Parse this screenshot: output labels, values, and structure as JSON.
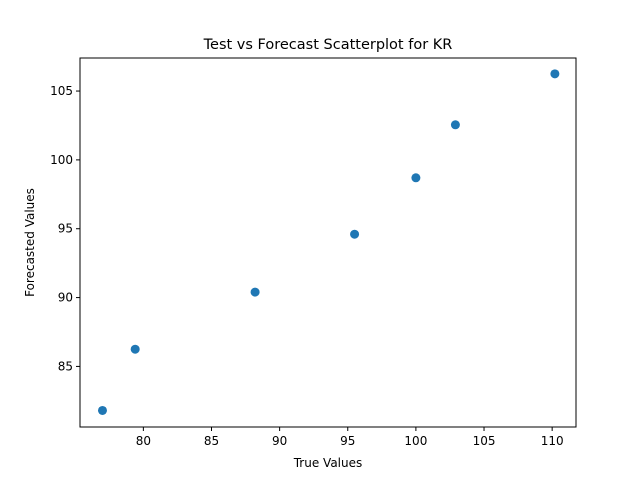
{
  "chart_data": {
    "type": "scatter",
    "title": "Test vs Forecast Scatterplot for KR",
    "xlabel": "True Values",
    "ylabel": "Forecasted Values",
    "xlim": [
      75.35,
      111.75
    ],
    "ylim": [
      80.6,
      107.4
    ],
    "xticks": [
      80,
      85,
      90,
      95,
      100,
      105,
      110
    ],
    "yticks": [
      85,
      90,
      95,
      100,
      105
    ],
    "grid": false,
    "series": [
      {
        "color": "#1f77b4",
        "points": [
          {
            "x": 77.0,
            "y": 81.8
          },
          {
            "x": 79.4,
            "y": 86.25
          },
          {
            "x": 88.2,
            "y": 90.4
          },
          {
            "x": 95.5,
            "y": 94.6
          },
          {
            "x": 100.0,
            "y": 98.7
          },
          {
            "x": 102.9,
            "y": 102.55
          },
          {
            "x": 110.2,
            "y": 106.25
          }
        ]
      }
    ]
  }
}
